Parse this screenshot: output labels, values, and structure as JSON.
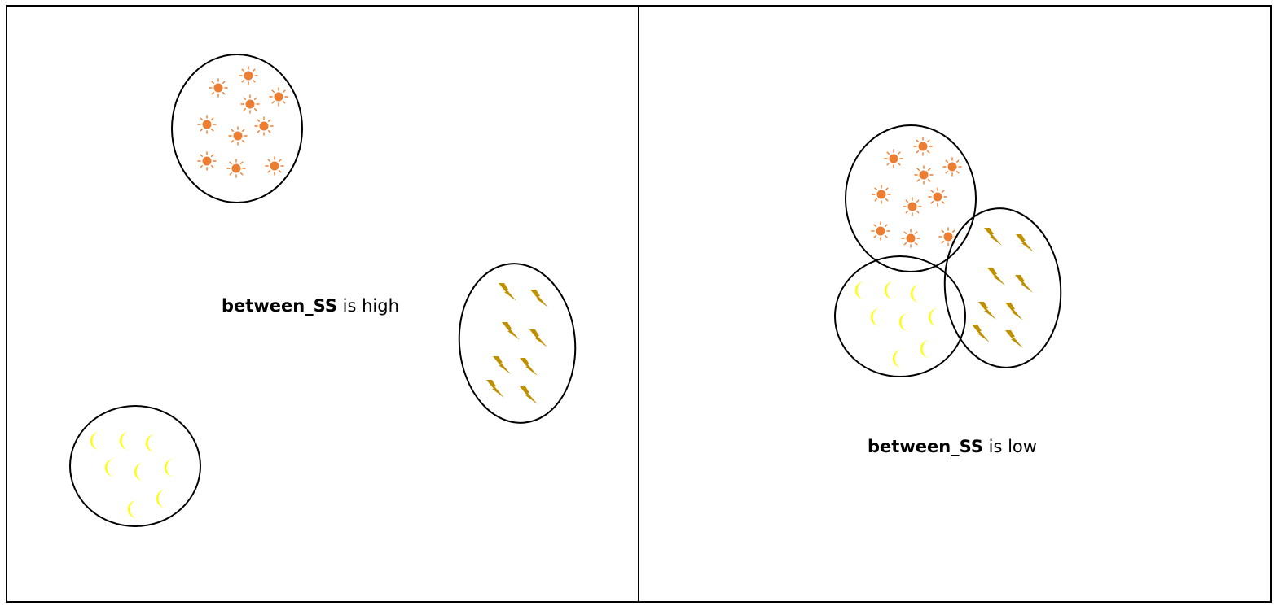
{
  "colors": {
    "border": "#000000",
    "sun": "#ED7D31",
    "moon": "#FFFF00",
    "lightning": "#BF9000"
  },
  "icons": {
    "sun": "sun-icon",
    "moon": "crescent-moon-icon",
    "lightning": "lightning-bolt-icon"
  },
  "panels": [
    {
      "caption_bold": "between_SS",
      "caption_rest": " is high",
      "clusters": [
        {
          "icon": "sun",
          "count": 10
        },
        {
          "icon": "lightning",
          "count": 8
        },
        {
          "icon": "moon",
          "count": 8
        }
      ]
    },
    {
      "caption_bold": "between_SS",
      "caption_rest": " is low",
      "clusters": [
        {
          "icon": "sun",
          "count": 10
        },
        {
          "icon": "moon",
          "count": 8
        },
        {
          "icon": "lightning",
          "count": 8
        }
      ]
    }
  ]
}
